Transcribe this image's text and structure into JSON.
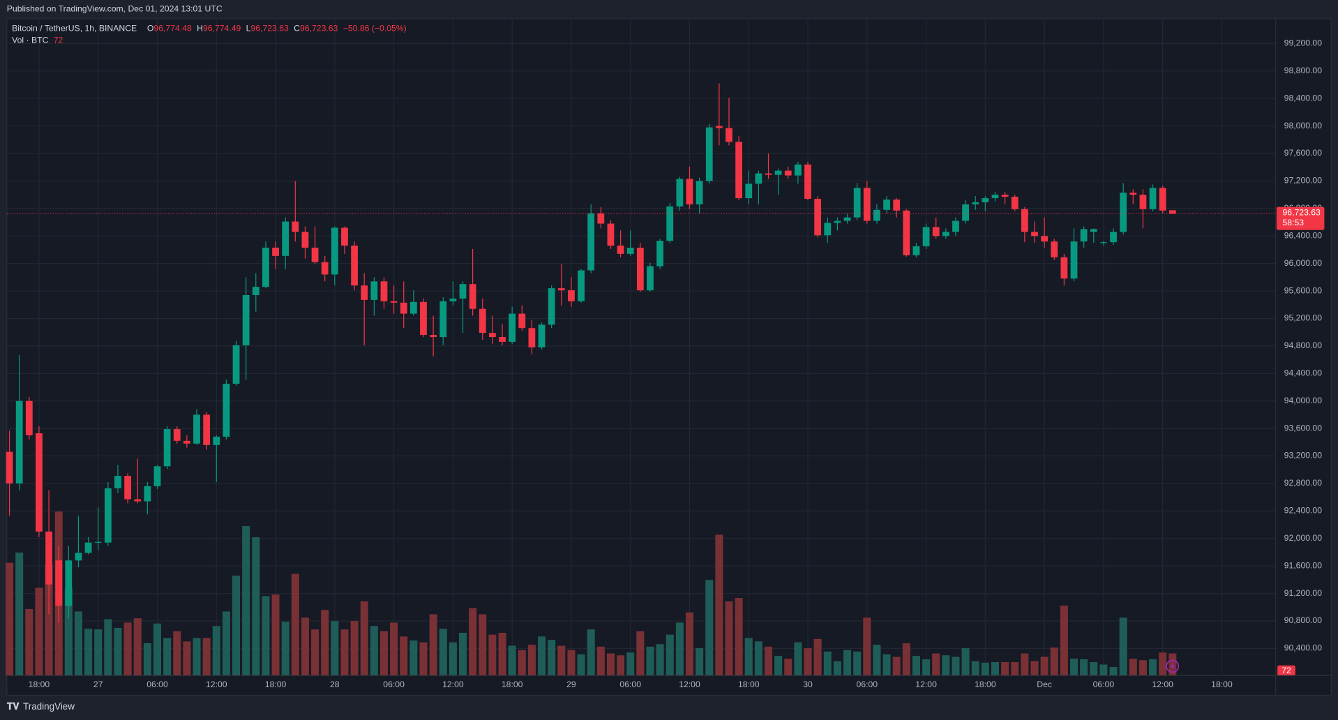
{
  "title": "Published on TradingView.com, Dec 01, 2024 13:01 UTC",
  "footer": "TradingView",
  "chart_data": {
    "type": "candlestick",
    "legend": {
      "symbol": "Bitcoin / TetherUS, 1h, BINANCE",
      "fields": [
        {
          "key": "O",
          "value": "96,774.48"
        },
        {
          "key": "H",
          "value": "96,774.49"
        },
        {
          "key": "L",
          "value": "96,723.63"
        },
        {
          "key": "C",
          "value": "96,723.63"
        }
      ],
      "change": "−50.86 (−0.05%)",
      "volume_label": "Vol · BTC"
    },
    "last_price_label": "96,723.63",
    "countdown": "58:53",
    "up_color": "#089981",
    "down_color": "#f23645",
    "volume_up_color": "#1f5e58",
    "volume_down_color": "#7a3135",
    "grid": true,
    "x": [
      "2024-11-26 15:00",
      "2024-11-26 16:00",
      "2024-11-26 17:00",
      "2024-11-26 18:00",
      "2024-11-26 19:00",
      "2024-11-26 20:00",
      "2024-11-26 21:00",
      "2024-11-26 22:00",
      "2024-11-26 23:00",
      "2024-11-27 00:00",
      "2024-11-27 01:00",
      "2024-11-27 02:00",
      "2024-11-27 03:00",
      "2024-11-27 04:00",
      "2024-11-27 05:00",
      "2024-11-27 06:00",
      "2024-11-27 07:00",
      "2024-11-27 08:00",
      "2024-11-27 09:00",
      "2024-11-27 10:00",
      "2024-11-27 11:00",
      "2024-11-27 12:00",
      "2024-11-27 13:00",
      "2024-11-27 14:00",
      "2024-11-27 15:00",
      "2024-11-27 16:00",
      "2024-11-27 17:00",
      "2024-11-27 18:00",
      "2024-11-27 19:00",
      "2024-11-27 20:00",
      "2024-11-27 21:00",
      "2024-11-27 22:00",
      "2024-11-27 23:00",
      "2024-11-28 00:00",
      "2024-11-28 01:00",
      "2024-11-28 02:00",
      "2024-11-28 03:00",
      "2024-11-28 04:00",
      "2024-11-28 05:00",
      "2024-11-28 06:00",
      "2024-11-28 07:00",
      "2024-11-28 08:00",
      "2024-11-28 09:00",
      "2024-11-28 10:00",
      "2024-11-28 11:00",
      "2024-11-28 12:00",
      "2024-11-28 13:00",
      "2024-11-28 14:00",
      "2024-11-28 15:00",
      "2024-11-28 16:00",
      "2024-11-28 17:00",
      "2024-11-28 18:00",
      "2024-11-28 19:00",
      "2024-11-28 20:00",
      "2024-11-28 21:00",
      "2024-11-28 22:00",
      "2024-11-28 23:00",
      "2024-11-29 00:00",
      "2024-11-29 01:00",
      "2024-11-29 02:00",
      "2024-11-29 03:00",
      "2024-11-29 04:00",
      "2024-11-29 05:00",
      "2024-11-29 06:00",
      "2024-11-29 07:00",
      "2024-11-29 08:00",
      "2024-11-29 09:00",
      "2024-11-29 10:00",
      "2024-11-29 11:00",
      "2024-11-29 12:00",
      "2024-11-29 13:00",
      "2024-11-29 14:00",
      "2024-11-29 15:00",
      "2024-11-29 16:00",
      "2024-11-29 17:00",
      "2024-11-29 18:00",
      "2024-11-29 19:00",
      "2024-11-29 20:00",
      "2024-11-29 21:00",
      "2024-11-29 22:00",
      "2024-11-29 23:00",
      "2024-11-30 00:00",
      "2024-11-30 01:00",
      "2024-11-30 02:00",
      "2024-11-30 03:00",
      "2024-11-30 04:00",
      "2024-11-30 05:00",
      "2024-11-30 06:00",
      "2024-11-30 07:00",
      "2024-11-30 08:00",
      "2024-11-30 09:00",
      "2024-11-30 10:00",
      "2024-11-30 11:00",
      "2024-11-30 12:00",
      "2024-11-30 13:00",
      "2024-11-30 14:00",
      "2024-11-30 15:00",
      "2024-11-30 16:00",
      "2024-11-30 17:00",
      "2024-11-30 18:00",
      "2024-11-30 19:00",
      "2024-11-30 20:00",
      "2024-11-30 21:00",
      "2024-11-30 22:00",
      "2024-11-30 23:00",
      "2024-12-01 00:00",
      "2024-12-01 01:00",
      "2024-12-01 02:00",
      "2024-12-01 03:00",
      "2024-12-01 04:00",
      "2024-12-01 05:00",
      "2024-12-01 06:00",
      "2024-12-01 07:00",
      "2024-12-01 08:00",
      "2024-12-01 09:00",
      "2024-12-01 10:00",
      "2024-12-01 11:00",
      "2024-12-01 12:00",
      "2024-12-01 13:00"
    ],
    "open": [
      93260,
      92800,
      94000,
      93530,
      92100,
      91680,
      91020,
      91680,
      91790,
      91940,
      91940,
      92730,
      92910,
      92570,
      92540,
      92760,
      93050,
      93590,
      93420,
      93380,
      93800,
      93360,
      93480,
      94250,
      94810,
      95540,
      95660,
      96230,
      96110,
      96610,
      96460,
      96230,
      96020,
      95840,
      96520,
      96260,
      95680,
      95470,
      95740,
      95450,
      95430,
      95270,
      95440,
      94960,
      94930,
      95450,
      95490,
      95700,
      95340,
      94990,
      94930,
      94860,
      95270,
      95060,
      94780,
      95110,
      95640,
      95610,
      95450,
      95900,
      96730,
      96580,
      96260,
      96140,
      96230,
      95610,
      95960,
      96330,
      96830,
      97230,
      96860,
      97200,
      98000,
      97970,
      97770,
      96950,
      97160,
      97310,
      97290,
      97350,
      97280,
      97440,
      96940,
      96410,
      96590,
      96620,
      96670,
      97100,
      96620,
      96780,
      96930,
      96770,
      96120,
      96250,
      96530,
      96400,
      96460,
      96620,
      96860,
      96890,
      96950,
      97000,
      96970,
      96790,
      96460,
      96400,
      96320,
      96090,
      95780,
      96320,
      96460,
      96300,
      96310,
      96460,
      97030,
      97000,
      96790,
      97100,
      96774.48
    ],
    "high": [
      93570,
      94670,
      94060,
      93630,
      92700,
      91890,
      91890,
      92330,
      92020,
      92450,
      92820,
      93070,
      92950,
      93160,
      92820,
      93070,
      93630,
      93630,
      93500,
      93880,
      93840,
      93500,
      94310,
      94870,
      95800,
      95860,
      96320,
      96320,
      96670,
      97200,
      96540,
      96540,
      96110,
      96540,
      96540,
      96320,
      95860,
      95800,
      95800,
      95680,
      95740,
      95610,
      95490,
      95240,
      95510,
      95740,
      95740,
      96210,
      95490,
      95240,
      95120,
      95370,
      95390,
      95180,
      95140,
      95680,
      95990,
      95800,
      95920,
      96860,
      96820,
      96630,
      96480,
      96480,
      96300,
      96010,
      96360,
      96880,
      97260,
      97410,
      97250,
      98030,
      98620,
      98410,
      97850,
      97350,
      97350,
      97600,
      97380,
      97410,
      97480,
      97480,
      96980,
      96670,
      96670,
      96730,
      97170,
      97200,
      96860,
      96980,
      96950,
      96790,
      96300,
      96580,
      96670,
      96510,
      96670,
      96920,
      96980,
      96980,
      97040,
      97040,
      97000,
      96820,
      96610,
      96670,
      96360,
      96140,
      96510,
      96540,
      96510,
      96330,
      96510,
      97170,
      97080,
      97080,
      97150,
      97130,
      96774.49
    ],
    "low": [
      92330,
      92700,
      93440,
      92020,
      90900,
      90770,
      90840,
      91580,
      91770,
      91830,
      91890,
      92660,
      92510,
      92510,
      92350,
      92720,
      93010,
      93380,
      93320,
      93360,
      93290,
      92820,
      93440,
      94220,
      94310,
      95300,
      95640,
      95920,
      95920,
      96320,
      96070,
      95990,
      95740,
      95680,
      96140,
      95610,
      94810,
      95240,
      95340,
      95270,
      95060,
      95240,
      94930,
      94650,
      94810,
      95390,
      94990,
      95240,
      94890,
      94830,
      94810,
      94830,
      95020,
      94680,
      94750,
      95060,
      95390,
      95370,
      95430,
      95860,
      96510,
      96210,
      96090,
      96110,
      95590,
      95590,
      95920,
      96300,
      96770,
      96790,
      96730,
      97160,
      97720,
      97720,
      96920,
      96860,
      96860,
      97230,
      97000,
      97230,
      97160,
      96920,
      96380,
      96300,
      96480,
      96580,
      96630,
      96580,
      96580,
      96730,
      96670,
      96100,
      96090,
      96210,
      96360,
      96360,
      96400,
      96580,
      96780,
      96760,
      96900,
      96860,
      96760,
      96310,
      96300,
      96230,
      96050,
      95680,
      95740,
      96230,
      96300,
      96260,
      96270,
      96420,
      96860,
      96510,
      96760,
      96730,
      96723.63
    ],
    "close": [
      92800,
      94000,
      93500,
      92100,
      91330,
      91020,
      91680,
      91790,
      91940,
      91950,
      92730,
      92910,
      92570,
      92540,
      92760,
      93050,
      93590,
      93420,
      93380,
      93800,
      93360,
      93480,
      94250,
      94810,
      95540,
      95660,
      96230,
      96110,
      96610,
      96460,
      96230,
      96020,
      95840,
      96520,
      96260,
      95680,
      95470,
      95740,
      95450,
      95430,
      95270,
      95440,
      94960,
      94930,
      95450,
      95490,
      95700,
      95340,
      94990,
      94930,
      94860,
      95270,
      95060,
      94780,
      95110,
      95640,
      95610,
      95450,
      95900,
      96730,
      96580,
      96260,
      96140,
      96230,
      95610,
      95960,
      96330,
      96830,
      97230,
      96860,
      97200,
      97980,
      97970,
      97770,
      96950,
      97160,
      97310,
      97290,
      97350,
      97280,
      97440,
      96940,
      96410,
      96590,
      96620,
      96670,
      97100,
      96620,
      96780,
      96930,
      96770,
      96120,
      96250,
      96530,
      96400,
      96460,
      96620,
      96860,
      96890,
      96950,
      97000,
      96970,
      96790,
      96460,
      96400,
      96320,
      96090,
      95780,
      96320,
      96500,
      96500,
      96310,
      96460,
      97030,
      97000,
      96790,
      97100,
      96770,
      96723.63
    ],
    "volume": [
      366,
      399,
      216,
      285,
      360,
      532,
      283,
      208,
      152,
      150,
      183,
      155,
      172,
      186,
      105,
      169,
      122,
      144,
      111,
      122,
      122,
      161,
      208,
      324,
      485,
      449,
      258,
      263,
      175,
      330,
      188,
      150,
      213,
      177,
      150,
      177,
      241,
      161,
      144,
      172,
      127,
      114,
      108,
      199,
      152,
      108,
      139,
      219,
      199,
      133,
      139,
      97,
      83,
      100,
      127,
      116,
      97,
      83,
      69,
      150,
      94,
      72,
      66,
      75,
      144,
      94,
      102,
      133,
      172,
      205,
      89,
      310,
      457,
      241,
      252,
      122,
      111,
      94,
      64,
      55,
      108,
      89,
      119,
      78,
      47,
      83,
      78,
      188,
      100,
      69,
      61,
      105,
      64,
      53,
      72,
      66,
      61,
      89,
      47,
      42,
      44,
      44,
      44,
      72,
      47,
      61,
      91,
      227,
      55,
      53,
      44,
      36,
      28,
      188,
      55,
      50,
      53,
      75,
      72
    ],
    "xlim": [
      "2024-11-26 14:44",
      "2024-12-01 23:28"
    ],
    "xticks": [
      {
        "value": "2024-11-26 18:00",
        "label": "18:00"
      },
      {
        "value": "2024-11-27 00:00",
        "label": "27"
      },
      {
        "value": "2024-11-27 06:00",
        "label": "06:00"
      },
      {
        "value": "2024-11-27 12:00",
        "label": "12:00"
      },
      {
        "value": "2024-11-27 18:00",
        "label": "18:00"
      },
      {
        "value": "2024-11-28 00:00",
        "label": "28"
      },
      {
        "value": "2024-11-28 06:00",
        "label": "06:00"
      },
      {
        "value": "2024-11-28 12:00",
        "label": "12:00"
      },
      {
        "value": "2024-11-28 18:00",
        "label": "18:00"
      },
      {
        "value": "2024-11-29 00:00",
        "label": "29"
      },
      {
        "value": "2024-11-29 06:00",
        "label": "06:00"
      },
      {
        "value": "2024-11-29 12:00",
        "label": "12:00"
      },
      {
        "value": "2024-11-29 18:00",
        "label": "18:00"
      },
      {
        "value": "2024-11-30 00:00",
        "label": "30"
      },
      {
        "value": "2024-11-30 06:00",
        "label": "06:00"
      },
      {
        "value": "2024-11-30 12:00",
        "label": "12:00"
      },
      {
        "value": "2024-11-30 18:00",
        "label": "18:00"
      },
      {
        "value": "2024-12-01 00:00",
        "label": "Dec"
      },
      {
        "value": "2024-12-01 06:00",
        "label": "06:00"
      },
      {
        "value": "2024-12-01 12:00",
        "label": "12:00"
      },
      {
        "value": "2024-12-01 18:00",
        "label": "18:00"
      }
    ],
    "ylim": [
      90004,
      99560
    ],
    "yticks": [
      {
        "value": 90400,
        "label": "90,400.00"
      },
      {
        "value": 90800,
        "label": "90,800.00"
      },
      {
        "value": 91200,
        "label": "91,200.00"
      },
      {
        "value": 91600,
        "label": "91,600.00"
      },
      {
        "value": 92000,
        "label": "92,000.00"
      },
      {
        "value": 92400,
        "label": "92,400.00"
      },
      {
        "value": 92800,
        "label": "92,800.00"
      },
      {
        "value": 93200,
        "label": "93,200.00"
      },
      {
        "value": 93600,
        "label": "93,600.00"
      },
      {
        "value": 94000,
        "label": "94,000.00"
      },
      {
        "value": 94400,
        "label": "94,400.00"
      },
      {
        "value": 94800,
        "label": "94,800.00"
      },
      {
        "value": 95200,
        "label": "95,200.00"
      },
      {
        "value": 95600,
        "label": "95,600.00"
      },
      {
        "value": 96000,
        "label": "96,000.00"
      },
      {
        "value": 96400,
        "label": "96,400.00"
      },
      {
        "value": 96800,
        "label": "96,800.00"
      },
      {
        "value": 97200,
        "label": "97,200.00"
      },
      {
        "value": 97600,
        "label": "97,600.00"
      },
      {
        "value": 98000,
        "label": "98,000.00"
      },
      {
        "value": 98400,
        "label": "98,400.00"
      },
      {
        "value": 98800,
        "label": "98,800.00"
      },
      {
        "value": 99200,
        "label": "99,200.00"
      }
    ],
    "y2lim": [
      0,
      2130
    ]
  }
}
